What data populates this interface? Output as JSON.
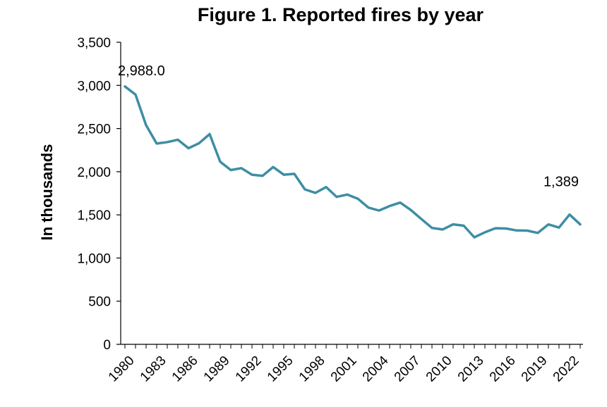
{
  "chart_data": {
    "type": "line",
    "title": "Figure 1. Reported fires by year",
    "xlabel": "",
    "ylabel": "In thousands",
    "ylim": [
      0,
      3500
    ],
    "y_ticks": [
      "0",
      "500",
      "1,000",
      "1,500",
      "2,000",
      "2,500",
      "3,000",
      "3,500"
    ],
    "x_tick_labels": [
      "1980",
      "1983",
      "1986",
      "1989",
      "1992",
      "1995",
      "1998",
      "2001",
      "2004",
      "2007",
      "2010",
      "2013",
      "2016",
      "2019",
      "2022"
    ],
    "grid": false,
    "line_color": "#3d8ea3",
    "x": [
      1980,
      1981,
      1982,
      1983,
      1984,
      1985,
      1986,
      1987,
      1988,
      1989,
      1990,
      1991,
      1992,
      1993,
      1994,
      1995,
      1996,
      1997,
      1998,
      1999,
      2000,
      2001,
      2002,
      2003,
      2004,
      2005,
      2006,
      2007,
      2008,
      2009,
      2010,
      2011,
      2012,
      2013,
      2014,
      2015,
      2016,
      2017,
      2018,
      2019,
      2020,
      2021,
      2022,
      2023
    ],
    "series": [
      {
        "values": [
          2988,
          2894,
          2538,
          2326,
          2343,
          2371,
          2272,
          2330,
          2436,
          2115,
          2019,
          2041,
          1965,
          1952,
          2054,
          1965,
          1975,
          1795,
          1755,
          1823,
          1708,
          1735,
          1687,
          1584,
          1550,
          1602,
          1642,
          1557,
          1451,
          1349,
          1331,
          1390,
          1375,
          1240,
          1298,
          1345,
          1342,
          1319,
          1318,
          1291,
          1389,
          1353,
          1504,
          1389
        ]
      }
    ],
    "annotations": [
      {
        "text": "2,988.0",
        "x": 1980
      },
      {
        "text": "1,389",
        "x": 2023
      }
    ]
  }
}
